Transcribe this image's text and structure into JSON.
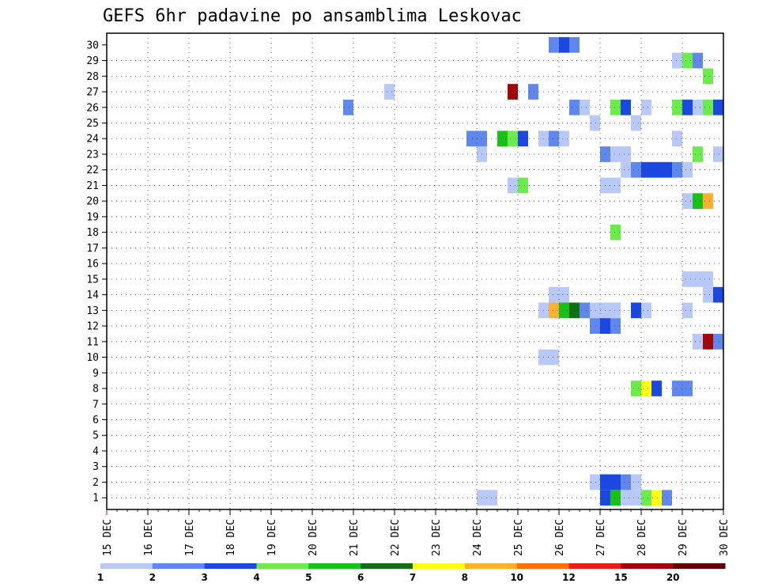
{
  "chart_data": {
    "type": "heatmap",
    "title": "GEFS 6hr padavine po ansamblima Leskovac",
    "xlabel": "",
    "ylabel": "",
    "x_tick_labels": [
      "15 DEC",
      "16 DEC",
      "17 DEC",
      "18 DEC",
      "19 DEC",
      "20 DEC",
      "21 DEC",
      "22 DEC",
      "23 DEC",
      "24 DEC",
      "25 DEC",
      "26 DEC",
      "27 DEC",
      "28 DEC",
      "29 DEC",
      "30 DEC"
    ],
    "y_tick_labels": [
      "1",
      "2",
      "3",
      "4",
      "5",
      "6",
      "7",
      "8",
      "9",
      "10",
      "11",
      "12",
      "13",
      "14",
      "15",
      "16",
      "17",
      "18",
      "19",
      "20",
      "21",
      "22",
      "23",
      "24",
      "25",
      "26",
      "27",
      "28",
      "29",
      "30"
    ],
    "time_range_days": [
      0,
      15
    ],
    "time_step_hours": 6,
    "members_range": [
      1,
      30
    ],
    "grid": true,
    "levels": [
      "1",
      "2",
      "3",
      "4",
      "5",
      "6",
      "7",
      "8",
      "10",
      "12",
      "15",
      "20"
    ],
    "colors": [
      "#b8c8f8",
      "#6088ec",
      "#1a48e0",
      "#6cec4c",
      "#18c018",
      "#127012",
      "#ffff18",
      "#ffb030",
      "#ff7010",
      "#e82010",
      "#a00808",
      "#600000"
    ],
    "cells": [
      {
        "member": 30,
        "day": 10.75,
        "level": 1
      },
      {
        "member": 30,
        "day": 11.0,
        "level": 2
      },
      {
        "member": 30,
        "day": 11.25,
        "level": 1
      },
      {
        "member": 29,
        "day": 13.75,
        "level": 0
      },
      {
        "member": 29,
        "day": 14.0,
        "level": 3
      },
      {
        "member": 29,
        "day": 14.25,
        "level": 1
      },
      {
        "member": 28,
        "day": 14.5,
        "level": 3
      },
      {
        "member": 27,
        "day": 6.75,
        "level": 0
      },
      {
        "member": 27,
        "day": 9.75,
        "level": 10
      },
      {
        "member": 27,
        "day": 10.25,
        "level": 1
      },
      {
        "member": 26,
        "day": 5.75,
        "level": 1
      },
      {
        "member": 26,
        "day": 11.25,
        "level": 1
      },
      {
        "member": 26,
        "day": 11.5,
        "level": 0
      },
      {
        "member": 26,
        "day": 12.25,
        "level": 3
      },
      {
        "member": 26,
        "day": 12.5,
        "level": 2
      },
      {
        "member": 26,
        "day": 13.0,
        "level": 0
      },
      {
        "member": 26,
        "day": 13.75,
        "level": 3
      },
      {
        "member": 26,
        "day": 14.0,
        "level": 2
      },
      {
        "member": 26,
        "day": 14.25,
        "level": 0
      },
      {
        "member": 26,
        "day": 14.5,
        "level": 3
      },
      {
        "member": 26,
        "day": 14.75,
        "level": 2
      },
      {
        "member": 25,
        "day": 11.75,
        "level": 0
      },
      {
        "member": 25,
        "day": 12.75,
        "level": 0
      },
      {
        "member": 24,
        "day": 8.75,
        "level": 1
      },
      {
        "member": 24,
        "day": 9.0,
        "level": 1
      },
      {
        "member": 24,
        "day": 9.5,
        "level": 4
      },
      {
        "member": 24,
        "day": 9.75,
        "level": 3
      },
      {
        "member": 24,
        "day": 10.0,
        "level": 2
      },
      {
        "member": 24,
        "day": 10.5,
        "level": 0
      },
      {
        "member": 24,
        "day": 10.75,
        "level": 1
      },
      {
        "member": 24,
        "day": 11.0,
        "level": 0
      },
      {
        "member": 24,
        "day": 13.75,
        "level": 0
      },
      {
        "member": 23,
        "day": 9.0,
        "level": 0
      },
      {
        "member": 23,
        "day": 12.0,
        "level": 1
      },
      {
        "member": 23,
        "day": 12.25,
        "level": 0
      },
      {
        "member": 23,
        "day": 12.5,
        "level": 0
      },
      {
        "member": 23,
        "day": 14.25,
        "level": 3
      },
      {
        "member": 23,
        "day": 14.75,
        "level": 0
      },
      {
        "member": 22,
        "day": 12.5,
        "level": 0
      },
      {
        "member": 22,
        "day": 12.75,
        "level": 1
      },
      {
        "member": 22,
        "day": 13.0,
        "level": 2
      },
      {
        "member": 22,
        "day": 13.25,
        "level": 2
      },
      {
        "member": 22,
        "day": 13.5,
        "level": 2
      },
      {
        "member": 22,
        "day": 13.75,
        "level": 1
      },
      {
        "member": 22,
        "day": 14.0,
        "level": 0
      },
      {
        "member": 21,
        "day": 9.75,
        "level": 0
      },
      {
        "member": 21,
        "day": 10.0,
        "level": 3
      },
      {
        "member": 21,
        "day": 12.0,
        "level": 0
      },
      {
        "member": 21,
        "day": 12.25,
        "level": 0
      },
      {
        "member": 20,
        "day": 14.0,
        "level": 0
      },
      {
        "member": 20,
        "day": 14.25,
        "level": 4
      },
      {
        "member": 20,
        "day": 14.5,
        "level": 7
      },
      {
        "member": 18,
        "day": 12.25,
        "level": 3
      },
      {
        "member": 15,
        "day": 14.0,
        "level": 0
      },
      {
        "member": 15,
        "day": 14.25,
        "level": 0
      },
      {
        "member": 15,
        "day": 14.5,
        "level": 0
      },
      {
        "member": 14,
        "day": 10.75,
        "level": 0
      },
      {
        "member": 14,
        "day": 11.0,
        "level": 0
      },
      {
        "member": 14,
        "day": 14.5,
        "level": 0
      },
      {
        "member": 14,
        "day": 14.75,
        "level": 2
      },
      {
        "member": 13,
        "day": 10.5,
        "level": 0
      },
      {
        "member": 13,
        "day": 10.75,
        "level": 7
      },
      {
        "member": 13,
        "day": 11.0,
        "level": 4
      },
      {
        "member": 13,
        "day": 11.25,
        "level": 5
      },
      {
        "member": 13,
        "day": 11.5,
        "level": 1
      },
      {
        "member": 13,
        "day": 11.75,
        "level": 0
      },
      {
        "member": 13,
        "day": 12.0,
        "level": 0
      },
      {
        "member": 13,
        "day": 12.25,
        "level": 0
      },
      {
        "member": 13,
        "day": 12.75,
        "level": 2
      },
      {
        "member": 13,
        "day": 13.0,
        "level": 0
      },
      {
        "member": 13,
        "day": 14.0,
        "level": 0
      },
      {
        "member": 12,
        "day": 11.75,
        "level": 1
      },
      {
        "member": 12,
        "day": 12.0,
        "level": 2
      },
      {
        "member": 12,
        "day": 12.25,
        "level": 1
      },
      {
        "member": 11,
        "day": 14.25,
        "level": 0
      },
      {
        "member": 11,
        "day": 14.5,
        "level": 10
      },
      {
        "member": 11,
        "day": 14.75,
        "level": 1
      },
      {
        "member": 10,
        "day": 10.5,
        "level": 0
      },
      {
        "member": 10,
        "day": 10.75,
        "level": 0
      },
      {
        "member": 8,
        "day": 12.75,
        "level": 3
      },
      {
        "member": 8,
        "day": 13.0,
        "level": 6
      },
      {
        "member": 8,
        "day": 13.25,
        "level": 2
      },
      {
        "member": 8,
        "day": 13.75,
        "level": 1
      },
      {
        "member": 8,
        "day": 14.0,
        "level": 1
      },
      {
        "member": 2,
        "day": 11.75,
        "level": 0
      },
      {
        "member": 2,
        "day": 12.0,
        "level": 2
      },
      {
        "member": 2,
        "day": 12.25,
        "level": 2
      },
      {
        "member": 2,
        "day": 12.5,
        "level": 1
      },
      {
        "member": 2,
        "day": 12.75,
        "level": 0
      },
      {
        "member": 1,
        "day": 9.0,
        "level": 0
      },
      {
        "member": 1,
        "day": 9.25,
        "level": 0
      },
      {
        "member": 1,
        "day": 12.0,
        "level": 2
      },
      {
        "member": 1,
        "day": 12.25,
        "level": 4
      },
      {
        "member": 1,
        "day": 12.5,
        "level": 0
      },
      {
        "member": 1,
        "day": 12.75,
        "level": 0
      },
      {
        "member": 1,
        "day": 13.0,
        "level": 3
      },
      {
        "member": 1,
        "day": 13.25,
        "level": 6
      },
      {
        "member": 1,
        "day": 13.5,
        "level": 1
      }
    ]
  }
}
